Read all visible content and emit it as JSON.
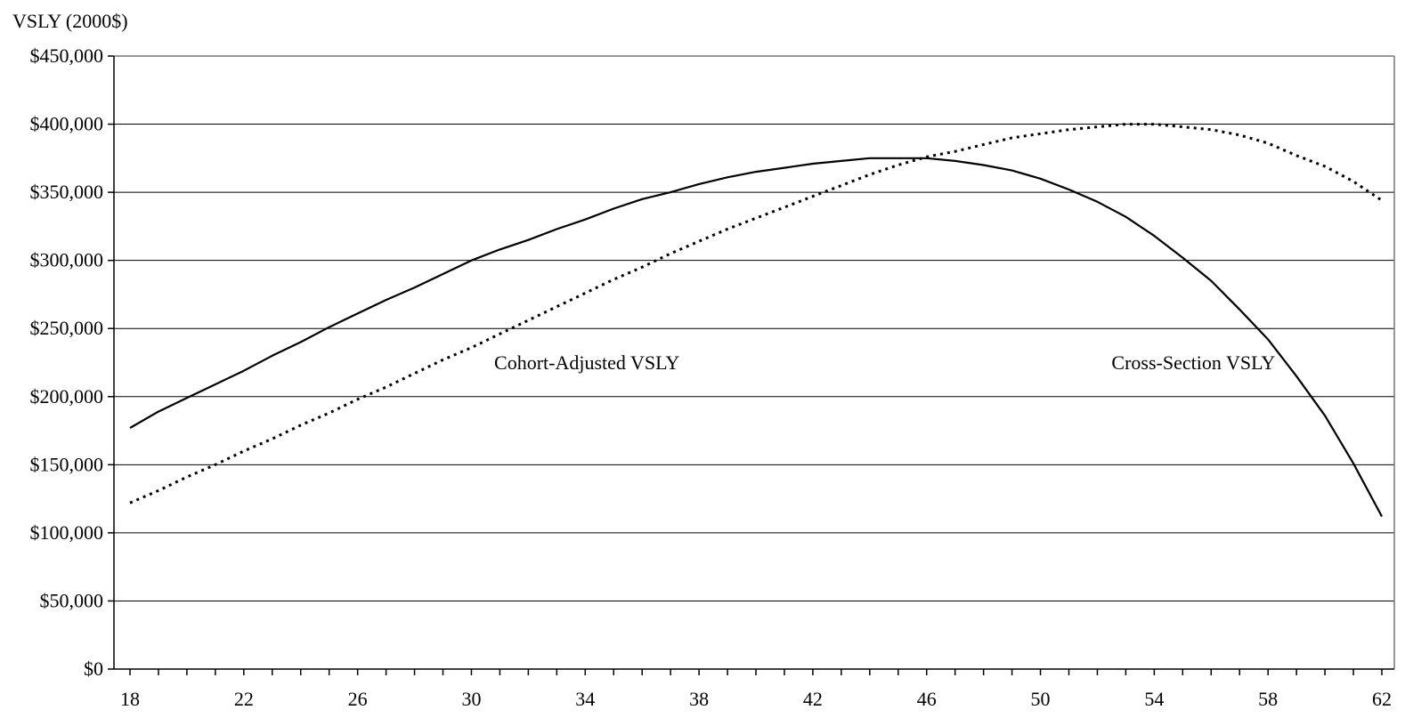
{
  "chart_data": {
    "type": "line",
    "title": "",
    "ylabel": "VSLY (2000$)",
    "xlabel": "",
    "xlim": [
      18,
      62
    ],
    "ylim": [
      0,
      450000
    ],
    "x_ticks": [
      18,
      22,
      26,
      30,
      34,
      38,
      42,
      46,
      50,
      54,
      58,
      62
    ],
    "y_ticks": [
      0,
      50000,
      100000,
      150000,
      200000,
      250000,
      300000,
      350000,
      400000,
      450000
    ],
    "x_tick_labels": [
      "18",
      "22",
      "26",
      "30",
      "34",
      "38",
      "42",
      "46",
      "50",
      "54",
      "58",
      "62"
    ],
    "y_tick_labels": [
      "$0",
      "$50,000",
      "$100,000",
      "$150,000",
      "$200,000",
      "$250,000",
      "$300,000",
      "$350,000",
      "$400,000",
      "$450,000"
    ],
    "grid": "horizontal",
    "legend": "none",
    "x": [
      18,
      19,
      20,
      21,
      22,
      23,
      24,
      25,
      26,
      27,
      28,
      29,
      30,
      31,
      32,
      33,
      34,
      35,
      36,
      37,
      38,
      39,
      40,
      41,
      42,
      43,
      44,
      45,
      46,
      47,
      48,
      49,
      50,
      51,
      52,
      53,
      54,
      55,
      56,
      57,
      58,
      59,
      60,
      61,
      62
    ],
    "series": [
      {
        "style": "dotted",
        "color": "#000000",
        "values": [
          122000,
          131000,
          141000,
          150000,
          160000,
          169000,
          179000,
          188000,
          198000,
          207000,
          217000,
          227000,
          236000,
          246000,
          256000,
          266000,
          276000,
          286000,
          295000,
          305000,
          314000,
          323000,
          331000,
          339000,
          347000,
          355000,
          363000,
          370000,
          376000,
          380000,
          385000,
          390000,
          393000,
          396000,
          398000,
          400000,
          400000,
          398000,
          396000,
          392000,
          386000,
          377000,
          369000,
          358000,
          344000
        ]
      },
      {
        "style": "solid",
        "color": "#000000",
        "values": [
          177000,
          189000,
          199000,
          209000,
          219000,
          230000,
          240000,
          251000,
          261000,
          271000,
          280000,
          290000,
          300000,
          308000,
          315000,
          323000,
          330000,
          338000,
          345000,
          350000,
          356000,
          361000,
          365000,
          368000,
          371000,
          373000,
          375000,
          375000,
          375000,
          373000,
          370000,
          366000,
          360000,
          352000,
          343000,
          332000,
          318000,
          302000,
          285000,
          264000,
          242000,
          215000,
          186000,
          151000,
          112000
        ]
      }
    ],
    "annotations": [
      {
        "text": "Cohort-Adjusted VSLY",
        "x": 30.8,
        "y": 220000
      },
      {
        "text": "Cross-Section VSLY",
        "x": 52.5,
        "y": 220000
      }
    ]
  }
}
